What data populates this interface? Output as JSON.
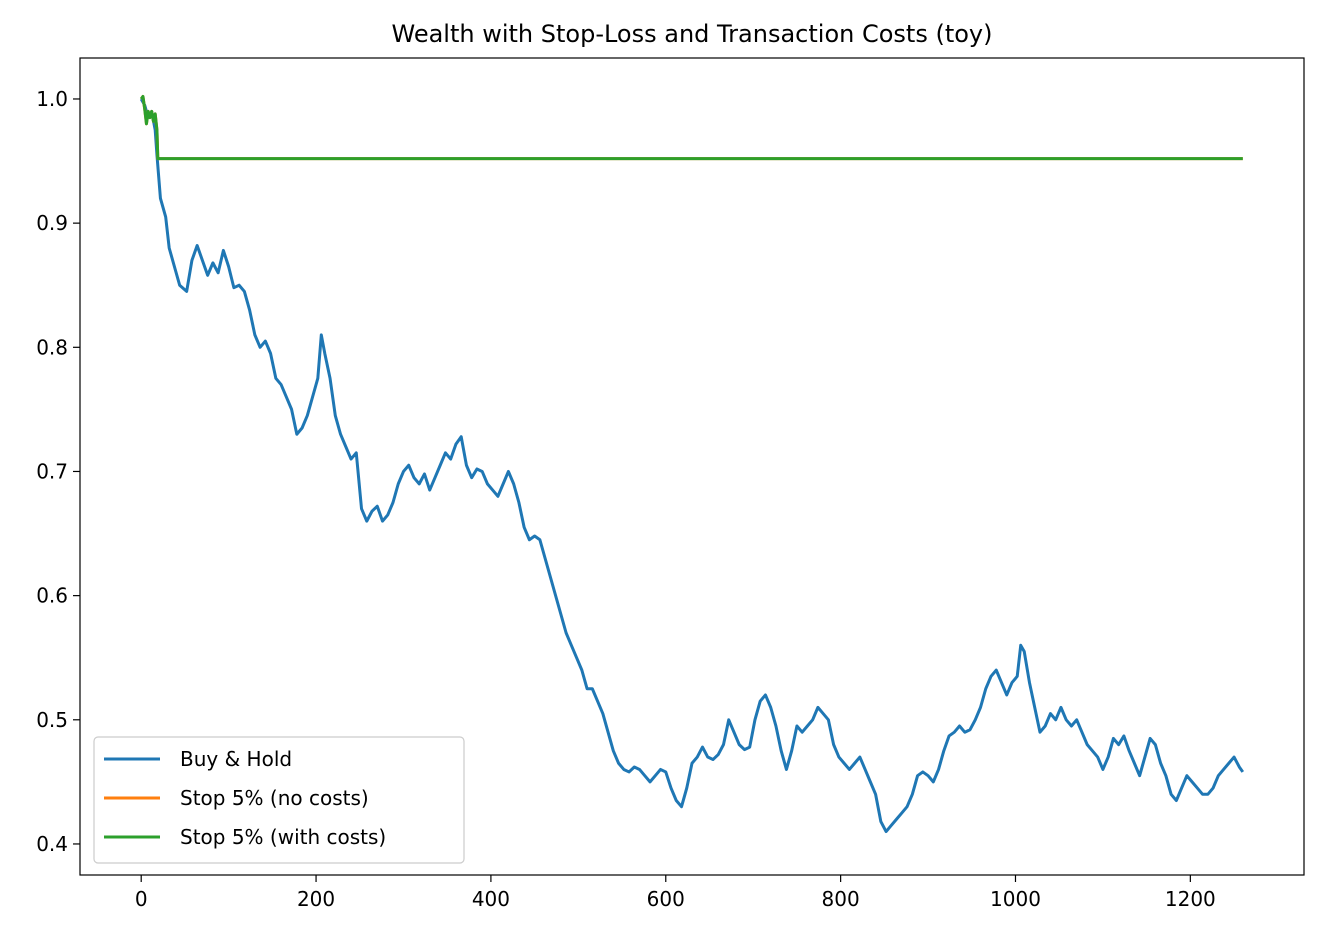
{
  "chart_data": {
    "type": "line",
    "title": "Wealth with Stop-Loss and Transaction Costs (toy)",
    "xlabel": "",
    "ylabel": "",
    "xlim": [
      -70,
      1330
    ],
    "ylim": [
      0.375,
      1.033
    ],
    "xticks": [
      0,
      200,
      400,
      600,
      800,
      1000,
      1200
    ],
    "xtick_labels": [
      "0",
      "200",
      "400",
      "600",
      "800",
      "1000",
      "1200"
    ],
    "yticks": [
      0.4,
      0.5,
      0.6,
      0.7,
      0.8,
      0.9,
      1.0
    ],
    "ytick_labels": [
      "0.4",
      "0.5",
      "0.6",
      "0.7",
      "0.8",
      "0.9",
      "1.0"
    ],
    "grid": false,
    "legend_position": "lower-left",
    "series": [
      {
        "name": "Buy & Hold",
        "color": "#1f77b4",
        "points": [
          [
            0,
            1.0
          ],
          [
            4,
            0.995
          ],
          [
            8,
            0.985
          ],
          [
            12,
            0.99
          ],
          [
            16,
            0.975
          ],
          [
            18,
            0.955
          ],
          [
            22,
            0.92
          ],
          [
            28,
            0.905
          ],
          [
            32,
            0.88
          ],
          [
            38,
            0.865
          ],
          [
            44,
            0.85
          ],
          [
            52,
            0.845
          ],
          [
            58,
            0.87
          ],
          [
            64,
            0.882
          ],
          [
            70,
            0.87
          ],
          [
            76,
            0.858
          ],
          [
            82,
            0.868
          ],
          [
            88,
            0.86
          ],
          [
            94,
            0.878
          ],
          [
            100,
            0.865
          ],
          [
            106,
            0.848
          ],
          [
            112,
            0.85
          ],
          [
            118,
            0.845
          ],
          [
            124,
            0.83
          ],
          [
            130,
            0.81
          ],
          [
            136,
            0.8
          ],
          [
            142,
            0.805
          ],
          [
            148,
            0.795
          ],
          [
            154,
            0.775
          ],
          [
            160,
            0.77
          ],
          [
            166,
            0.76
          ],
          [
            172,
            0.75
          ],
          [
            178,
            0.73
          ],
          [
            184,
            0.735
          ],
          [
            190,
            0.745
          ],
          [
            196,
            0.76
          ],
          [
            202,
            0.775
          ],
          [
            206,
            0.81
          ],
          [
            210,
            0.795
          ],
          [
            216,
            0.775
          ],
          [
            222,
            0.745
          ],
          [
            228,
            0.73
          ],
          [
            234,
            0.72
          ],
          [
            240,
            0.71
          ],
          [
            246,
            0.715
          ],
          [
            252,
            0.67
          ],
          [
            258,
            0.66
          ],
          [
            264,
            0.668
          ],
          [
            270,
            0.672
          ],
          [
            276,
            0.66
          ],
          [
            282,
            0.665
          ],
          [
            288,
            0.675
          ],
          [
            294,
            0.69
          ],
          [
            300,
            0.7
          ],
          [
            306,
            0.705
          ],
          [
            312,
            0.695
          ],
          [
            318,
            0.69
          ],
          [
            324,
            0.698
          ],
          [
            330,
            0.685
          ],
          [
            336,
            0.695
          ],
          [
            342,
            0.705
          ],
          [
            348,
            0.715
          ],
          [
            354,
            0.71
          ],
          [
            360,
            0.722
          ],
          [
            366,
            0.728
          ],
          [
            372,
            0.705
          ],
          [
            378,
            0.695
          ],
          [
            384,
            0.702
          ],
          [
            390,
            0.7
          ],
          [
            396,
            0.69
          ],
          [
            402,
            0.685
          ],
          [
            408,
            0.68
          ],
          [
            414,
            0.69
          ],
          [
            420,
            0.7
          ],
          [
            426,
            0.69
          ],
          [
            432,
            0.675
          ],
          [
            438,
            0.655
          ],
          [
            444,
            0.645
          ],
          [
            450,
            0.648
          ],
          [
            456,
            0.645
          ],
          [
            462,
            0.63
          ],
          [
            468,
            0.615
          ],
          [
            474,
            0.6
          ],
          [
            480,
            0.585
          ],
          [
            486,
            0.57
          ],
          [
            492,
            0.56
          ],
          [
            498,
            0.55
          ],
          [
            504,
            0.54
          ],
          [
            510,
            0.525
          ],
          [
            516,
            0.525
          ],
          [
            522,
            0.515
          ],
          [
            528,
            0.505
          ],
          [
            534,
            0.49
          ],
          [
            540,
            0.475
          ],
          [
            546,
            0.465
          ],
          [
            552,
            0.46
          ],
          [
            558,
            0.458
          ],
          [
            564,
            0.462
          ],
          [
            570,
            0.46
          ],
          [
            576,
            0.455
          ],
          [
            582,
            0.45
          ],
          [
            588,
            0.455
          ],
          [
            594,
            0.46
          ],
          [
            600,
            0.458
          ],
          [
            606,
            0.445
          ],
          [
            612,
            0.435
          ],
          [
            618,
            0.43
          ],
          [
            624,
            0.445
          ],
          [
            630,
            0.465
          ],
          [
            636,
            0.47
          ],
          [
            642,
            0.478
          ],
          [
            648,
            0.47
          ],
          [
            654,
            0.468
          ],
          [
            660,
            0.472
          ],
          [
            666,
            0.48
          ],
          [
            672,
            0.5
          ],
          [
            678,
            0.49
          ],
          [
            684,
            0.48
          ],
          [
            690,
            0.476
          ],
          [
            696,
            0.478
          ],
          [
            702,
            0.5
          ],
          [
            708,
            0.515
          ],
          [
            714,
            0.52
          ],
          [
            720,
            0.51
          ],
          [
            726,
            0.495
          ],
          [
            732,
            0.475
          ],
          [
            738,
            0.46
          ],
          [
            744,
            0.475
          ],
          [
            750,
            0.495
          ],
          [
            756,
            0.49
          ],
          [
            762,
            0.495
          ],
          [
            768,
            0.5
          ],
          [
            774,
            0.51
          ],
          [
            780,
            0.505
          ],
          [
            786,
            0.5
          ],
          [
            792,
            0.48
          ],
          [
            798,
            0.47
          ],
          [
            804,
            0.465
          ],
          [
            810,
            0.46
          ],
          [
            816,
            0.465
          ],
          [
            822,
            0.47
          ],
          [
            828,
            0.46
          ],
          [
            834,
            0.45
          ],
          [
            840,
            0.44
          ],
          [
            846,
            0.418
          ],
          [
            852,
            0.41
          ],
          [
            858,
            0.415
          ],
          [
            864,
            0.42
          ],
          [
            870,
            0.425
          ],
          [
            876,
            0.43
          ],
          [
            882,
            0.44
          ],
          [
            888,
            0.455
          ],
          [
            894,
            0.458
          ],
          [
            900,
            0.455
          ],
          [
            906,
            0.45
          ],
          [
            912,
            0.46
          ],
          [
            918,
            0.475
          ],
          [
            924,
            0.487
          ],
          [
            930,
            0.49
          ],
          [
            936,
            0.495
          ],
          [
            942,
            0.49
          ],
          [
            948,
            0.492
          ],
          [
            954,
            0.5
          ],
          [
            960,
            0.51
          ],
          [
            966,
            0.525
          ],
          [
            972,
            0.535
          ],
          [
            978,
            0.54
          ],
          [
            984,
            0.53
          ],
          [
            990,
            0.52
          ],
          [
            996,
            0.53
          ],
          [
            1002,
            0.535
          ],
          [
            1006,
            0.56
          ],
          [
            1010,
            0.555
          ],
          [
            1016,
            0.53
          ],
          [
            1022,
            0.51
          ],
          [
            1028,
            0.49
          ],
          [
            1034,
            0.495
          ],
          [
            1040,
            0.505
          ],
          [
            1046,
            0.5
          ],
          [
            1052,
            0.51
          ],
          [
            1058,
            0.5
          ],
          [
            1064,
            0.495
          ],
          [
            1070,
            0.5
          ],
          [
            1076,
            0.49
          ],
          [
            1082,
            0.48
          ],
          [
            1088,
            0.475
          ],
          [
            1094,
            0.47
          ],
          [
            1100,
            0.46
          ],
          [
            1106,
            0.47
          ],
          [
            1112,
            0.485
          ],
          [
            1118,
            0.48
          ],
          [
            1124,
            0.487
          ],
          [
            1130,
            0.475
          ],
          [
            1136,
            0.465
          ],
          [
            1142,
            0.455
          ],
          [
            1148,
            0.47
          ],
          [
            1154,
            0.485
          ],
          [
            1160,
            0.48
          ],
          [
            1166,
            0.465
          ],
          [
            1172,
            0.455
          ],
          [
            1178,
            0.44
          ],
          [
            1184,
            0.435
          ],
          [
            1190,
            0.445
          ],
          [
            1196,
            0.455
          ],
          [
            1202,
            0.45
          ],
          [
            1208,
            0.445
          ],
          [
            1214,
            0.44
          ],
          [
            1220,
            0.44
          ],
          [
            1226,
            0.445
          ],
          [
            1232,
            0.455
          ],
          [
            1238,
            0.46
          ],
          [
            1244,
            0.465
          ],
          [
            1250,
            0.47
          ],
          [
            1256,
            0.462
          ],
          [
            1260,
            0.458
          ]
        ]
      },
      {
        "name": "Stop 5% (no costs)",
        "color": "#ff7f0e",
        "points": [
          [
            0,
            1.0
          ],
          [
            2,
            1.002
          ],
          [
            4,
            0.992
          ],
          [
            6,
            0.98
          ],
          [
            8,
            0.99
          ],
          [
            10,
            0.985
          ],
          [
            12,
            0.99
          ],
          [
            14,
            0.982
          ],
          [
            16,
            0.988
          ],
          [
            18,
            0.975
          ],
          [
            19,
            0.952
          ],
          [
            1260,
            0.952
          ]
        ]
      },
      {
        "name": "Stop 5% (with costs)",
        "color": "#2ca02c",
        "points": [
          [
            0,
            1.0
          ],
          [
            2,
            1.002
          ],
          [
            4,
            0.992
          ],
          [
            6,
            0.98
          ],
          [
            8,
            0.99
          ],
          [
            10,
            0.985
          ],
          [
            12,
            0.99
          ],
          [
            14,
            0.982
          ],
          [
            16,
            0.988
          ],
          [
            18,
            0.975
          ],
          [
            19,
            0.952
          ],
          [
            1260,
            0.952
          ]
        ]
      }
    ]
  }
}
